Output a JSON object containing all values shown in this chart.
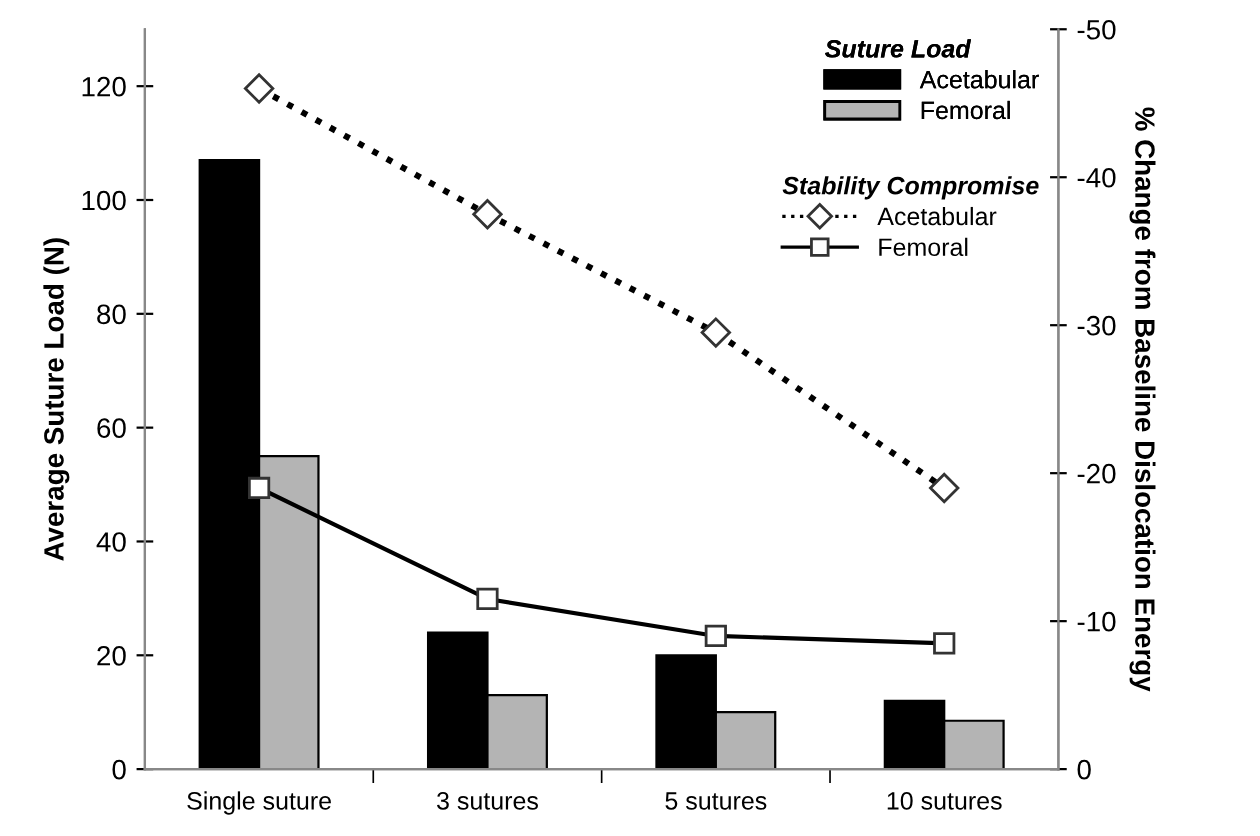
{
  "chart_data": {
    "type": "bar",
    "ylabel": "Average Suture Load (N)",
    "y2label": "% Change from Baseline Dislocation Energy",
    "legend_title": [
      "Suture Load",
      "Stability Compromise"
    ],
    "categories": [
      "Single suture",
      "3 sutures",
      "5 sutures",
      "10 sutures"
    ],
    "series": [
      {
        "name": "Acetabular",
        "color": "#000000",
        "values": [
          107,
          24,
          20,
          12
        ]
      },
      {
        "name": "Femoral",
        "color": "#b4b4b4",
        "values": [
          55,
          13,
          10,
          8.5
        ]
      },
      {
        "name": "Acetabular",
        "type": "line",
        "axis": "y2",
        "color": "#000000",
        "marker": "diamond",
        "line_style": "dotted",
        "values": [
          -46,
          -37.5,
          -29.5,
          -19
        ]
      },
      {
        "name": "Femoral",
        "type": "line",
        "axis": "y2",
        "color": "#000000",
        "marker": "square",
        "line_style": "solid",
        "values": [
          -19,
          -11.5,
          -9,
          -8.5
        ]
      }
    ],
    "ylim": [
      0,
      130
    ],
    "yticks": [
      0,
      20,
      40,
      60,
      80,
      100,
      120
    ],
    "y2lim": [
      0,
      -50
    ],
    "y2ticks": [
      0,
      -10,
      -20,
      -30,
      -40,
      -50
    ],
    "grid": false,
    "legend": "top right"
  }
}
